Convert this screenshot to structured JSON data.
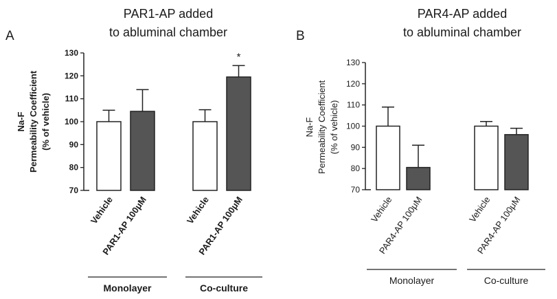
{
  "chart_data": [
    {
      "type": "bar",
      "panel_label": "A",
      "title_lines": [
        "PAR1-AP added",
        "to abluminal chamber"
      ],
      "ylabel_lines": [
        "Na-F",
        "Permeability Coefficient",
        "(% of vehicle)"
      ],
      "ylim": [
        70,
        130
      ],
      "yticks": [
        "70",
        "80",
        "90",
        "100",
        "110",
        "120",
        "130"
      ],
      "categories": [
        "Vehicle",
        "PAR1-AP 100μM",
        "Vehicle",
        "PAR1-AP 100μM"
      ],
      "values": [
        100,
        104.5,
        100,
        119.5
      ],
      "errors": [
        5,
        9.5,
        5.2,
        5
      ],
      "fills": [
        "#ffffff",
        "#555555",
        "#ffffff",
        "#555555"
      ],
      "significance": [
        "",
        "",
        "",
        "*"
      ],
      "groups": [
        "Monolayer",
        "Co-culture"
      ],
      "grid": false,
      "bold_text": true
    },
    {
      "type": "bar",
      "panel_label": "B",
      "title_lines": [
        "PAR4-AP added",
        "to abluminal chamber"
      ],
      "ylabel_lines": [
        "Na-F",
        "Permeability Coefficient",
        "(% of vehicle)"
      ],
      "ylim": [
        70,
        130
      ],
      "yticks": [
        "70",
        "80",
        "90",
        "100",
        "110",
        "120",
        "130"
      ],
      "categories": [
        "Vehicle",
        "PAR4-AP 100μM",
        "Vehicle",
        "PAR4-AP 100μM"
      ],
      "values": [
        100,
        80.5,
        100,
        96
      ],
      "errors": [
        9,
        10.5,
        2.2,
        3
      ],
      "fills": [
        "#ffffff",
        "#555555",
        "#ffffff",
        "#555555"
      ],
      "significance": [
        "",
        "",
        "",
        ""
      ],
      "groups": [
        "Monolayer",
        "Co-culture"
      ],
      "grid": false,
      "bold_text": false
    }
  ]
}
